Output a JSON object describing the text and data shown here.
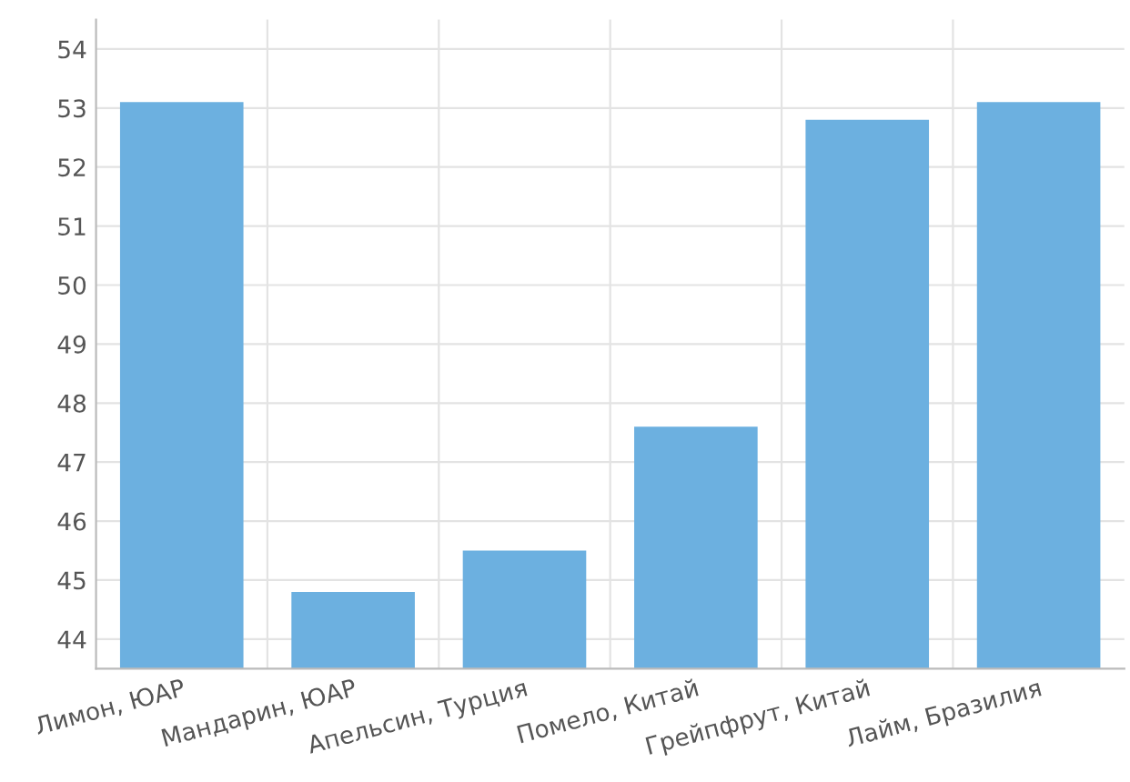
{
  "chart_data": {
    "type": "bar",
    "categories": [
      "Лимон, ЮАР",
      "Мандарин, ЮАР",
      "Апельсин, Турция",
      "Помело, Китай",
      "Грейпфрут, Китай",
      "Лайм, Бразилия"
    ],
    "values": [
      53.1,
      44.8,
      45.5,
      47.6,
      52.8,
      53.1
    ],
    "color": "#6cb0e0",
    "ylim": [
      43.5,
      54.5
    ],
    "yticks": [
      44,
      45,
      46,
      47,
      48,
      49,
      50,
      51,
      52,
      53,
      54
    ],
    "grid": true,
    "legend": false
  }
}
